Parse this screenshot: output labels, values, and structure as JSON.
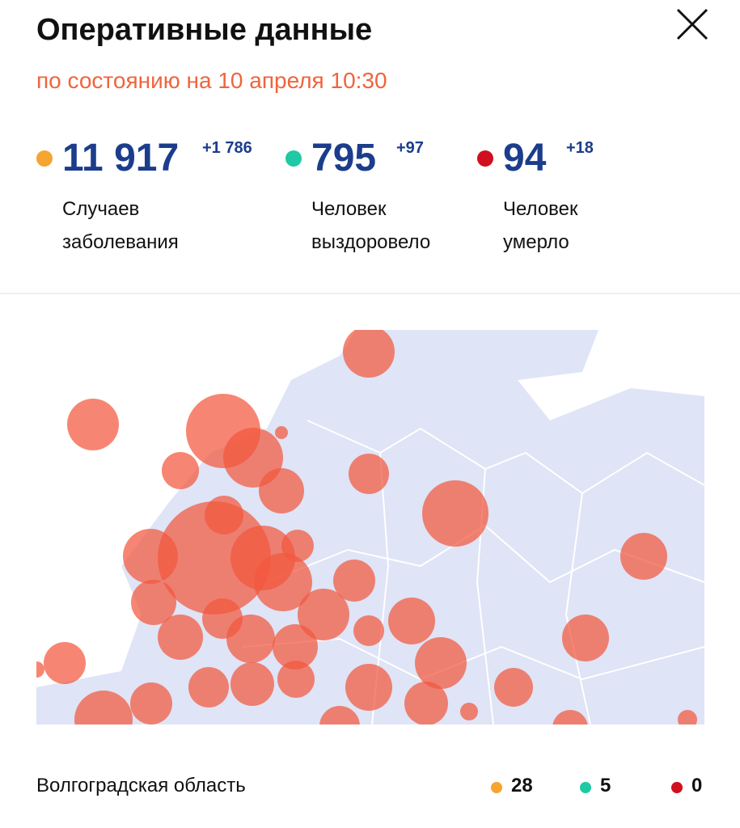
{
  "header": {
    "title": "Оперативные данные",
    "subtitle": "по состоянию на 10 апреля 10:30"
  },
  "stats": [
    {
      "value": "11 917",
      "delta": "+1 786",
      "label_lines": [
        "Случаев",
        "заболевания"
      ],
      "color": "#f5a530"
    },
    {
      "value": "795",
      "delta": "+97",
      "label_lines": [
        "Человек",
        "выздоровело"
      ],
      "color": "#1ec9a4"
    },
    {
      "value": "94",
      "delta": "+18",
      "label_lines": [
        "Человек",
        "умерло"
      ],
      "color": "#d0101e"
    }
  ],
  "region": {
    "name": "Волгоградская область",
    "values": [
      {
        "value": "28",
        "color": "#f5a530"
      },
      {
        "value": "5",
        "color": "#1ec9a4"
      },
      {
        "value": "0",
        "color": "#d0101e"
      }
    ]
  }
}
